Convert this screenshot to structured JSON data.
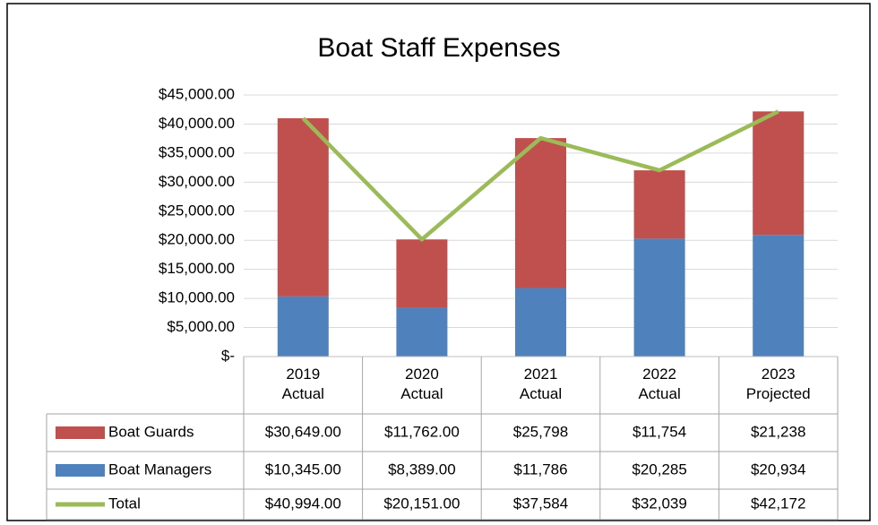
{
  "chart_data": {
    "type": "bar",
    "stacked": true,
    "title": "Boat Staff Expenses",
    "categories": [
      "2019\nActual",
      "2020\nActual",
      "2021\nActual",
      "2022\nActual",
      "2023\nProjected"
    ],
    "series": [
      {
        "name": "Boat Guards",
        "type": "bar",
        "color": "#c0504d",
        "values": [
          30649,
          11762,
          25798,
          11754,
          21238
        ],
        "value_labels": [
          "$30,649.00",
          "$11,762.00",
          "$25,798",
          "$11,754",
          "$21,238"
        ]
      },
      {
        "name": "Boat Managers",
        "type": "bar",
        "color": "#4f81bd",
        "values": [
          10345,
          8389,
          11786,
          20285,
          20934
        ],
        "value_labels": [
          "$10,345.00",
          "$8,389.00",
          "$11,786",
          "$20,285",
          "$20,934"
        ]
      },
      {
        "name": "Total",
        "type": "line",
        "color": "#9bbb59",
        "values": [
          40994,
          20151,
          37584,
          32039,
          42172
        ],
        "value_labels": [
          "$40,994.00",
          "$20,151.00",
          "$37,584",
          "$32,039",
          "$42,172"
        ]
      }
    ],
    "ylim": [
      0,
      45000
    ],
    "yticks": [
      {
        "value": 0,
        "label": "$-"
      },
      {
        "value": 5000,
        "label": "$5,000.00"
      },
      {
        "value": 10000,
        "label": "$10,000.00"
      },
      {
        "value": 15000,
        "label": "$15,000.00"
      },
      {
        "value": 20000,
        "label": "$20,000.00"
      },
      {
        "value": 25000,
        "label": "$25,000.00"
      },
      {
        "value": 30000,
        "label": "$30,000.00"
      },
      {
        "value": 35000,
        "label": "$35,000.00"
      },
      {
        "value": 40000,
        "label": "$40,000.00"
      },
      {
        "value": 45000,
        "label": "$45,000.00"
      }
    ],
    "grid": true
  }
}
